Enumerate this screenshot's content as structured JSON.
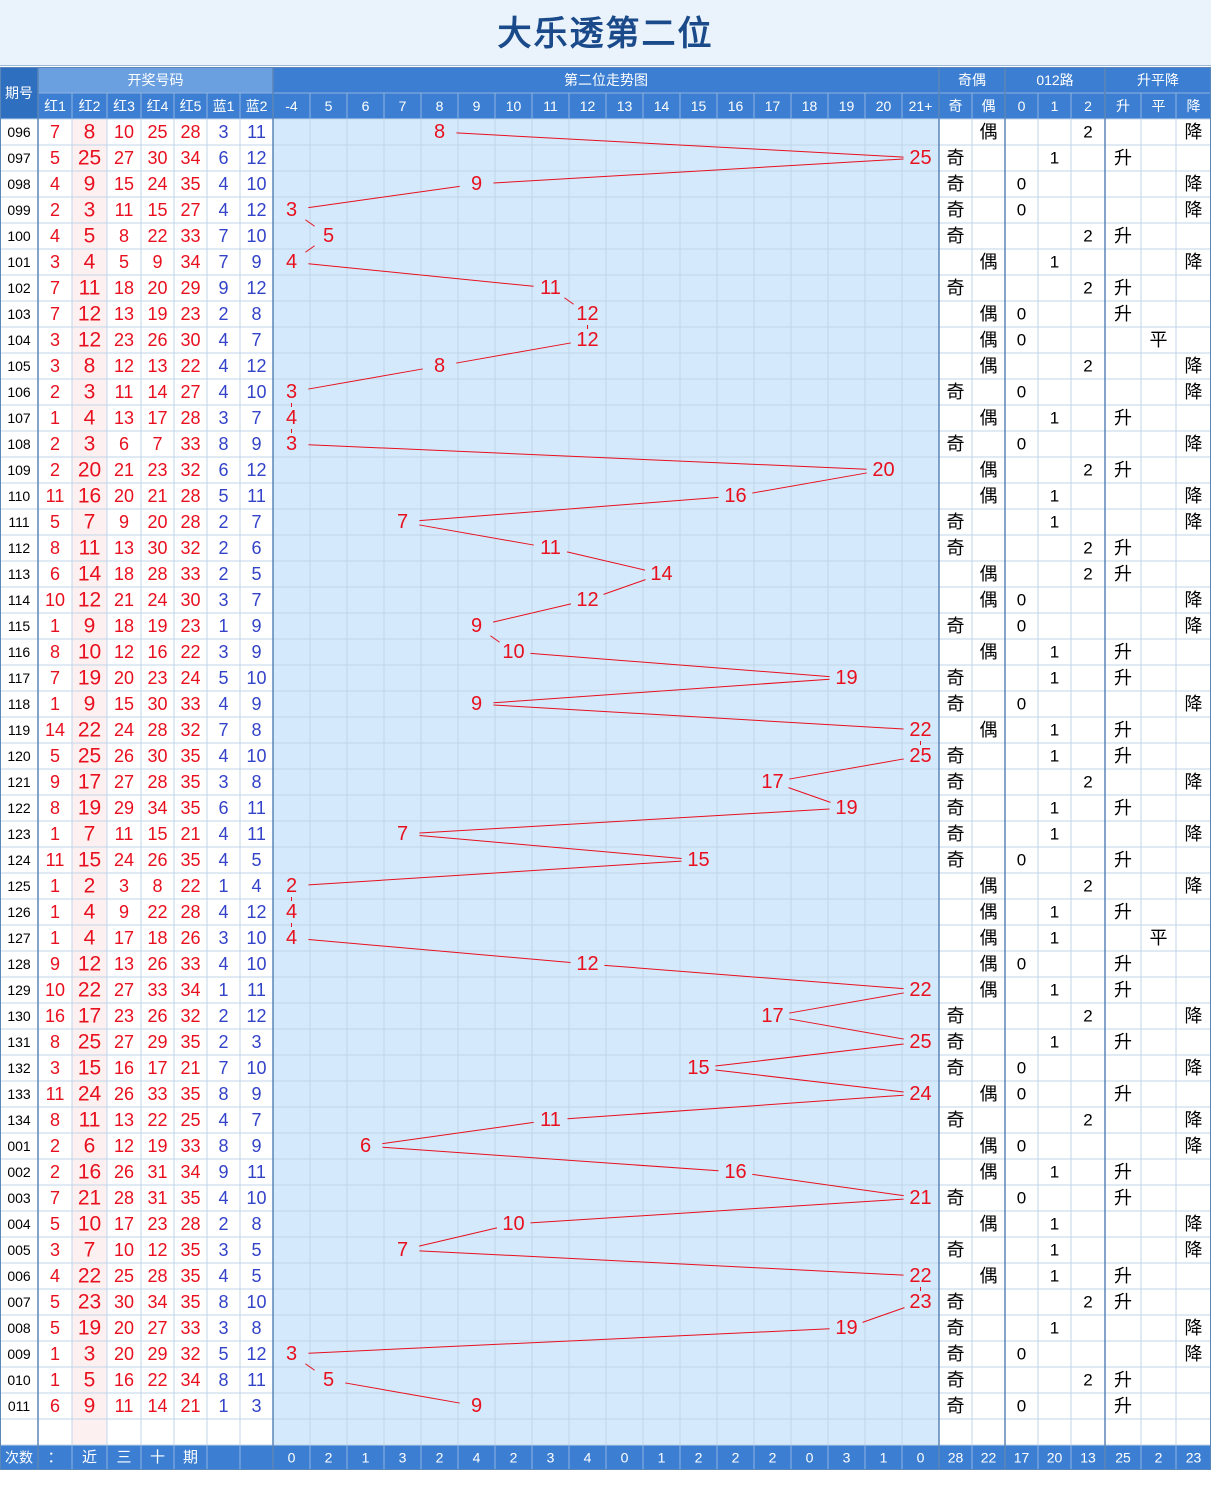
{
  "title": "大乐透第二位",
  "header": {
    "period": "期号",
    "group_numbers": "开奖号码",
    "group_trend": "第二位走势图",
    "group_odd_even": "奇偶",
    "group_012": "012路",
    "group_rise": "升平降",
    "ball_cols": [
      "红1",
      "红2",
      "红3",
      "红4",
      "红5",
      "蓝1",
      "蓝2"
    ],
    "trend_cols": [
      "-4",
      "5",
      "6",
      "7",
      "8",
      "9",
      "10",
      "11",
      "12",
      "13",
      "14",
      "15",
      "16",
      "17",
      "18",
      "19",
      "20",
      "21+"
    ],
    "oe_cols": [
      "奇",
      "偶"
    ],
    "r012_cols": [
      "0",
      "1",
      "2"
    ],
    "rise_cols": [
      "升",
      "平",
      "降"
    ]
  },
  "marks": {
    "odd": "奇",
    "even": "偶",
    "rise": "升",
    "flat": "平",
    "fall": "降"
  },
  "footer": {
    "label": "次数",
    "note_chars": [
      "：",
      "近",
      "三",
      "十",
      "期"
    ],
    "counts": [
      "0",
      "2",
      "1",
      "3",
      "2",
      "4",
      "2",
      "3",
      "4",
      "0",
      "1",
      "2",
      "2",
      "2",
      "0",
      "3",
      "1",
      "0",
      "28",
      "22",
      "17",
      "20",
      "13",
      "25",
      "2",
      "23"
    ]
  },
  "colors": {
    "red": "#e8101e",
    "blue": "#3343c8",
    "header_blue": "#3c7fd2",
    "trend_bg": "#d4e9fb",
    "grid": "#bfd6ea"
  },
  "chart_data": {
    "type": "line",
    "title": "大乐透第二位",
    "series_note": "第二位 value per draw, plotted on trend columns -4 … 21+",
    "rows": [
      {
        "p": "096",
        "r": [
          7,
          8,
          10,
          25,
          28
        ],
        "b": [
          3,
          11
        ],
        "oe": "偶",
        "m": 2,
        "t": "降"
      },
      {
        "p": "097",
        "r": [
          5,
          25,
          27,
          30,
          34
        ],
        "b": [
          6,
          12
        ],
        "oe": "奇",
        "m": 1,
        "t": "升"
      },
      {
        "p": "098",
        "r": [
          4,
          9,
          15,
          24,
          35
        ],
        "b": [
          4,
          10
        ],
        "oe": "奇",
        "m": 0,
        "t": "降"
      },
      {
        "p": "099",
        "r": [
          2,
          3,
          11,
          15,
          27
        ],
        "b": [
          4,
          12
        ],
        "oe": "奇",
        "m": 0,
        "t": "降"
      },
      {
        "p": "100",
        "r": [
          4,
          5,
          8,
          22,
          33
        ],
        "b": [
          7,
          10
        ],
        "oe": "奇",
        "m": 2,
        "t": "升"
      },
      {
        "p": "101",
        "r": [
          3,
          4,
          5,
          9,
          34
        ],
        "b": [
          7,
          9
        ],
        "oe": "偶",
        "m": 1,
        "t": "降"
      },
      {
        "p": "102",
        "r": [
          7,
          11,
          18,
          20,
          29
        ],
        "b": [
          9,
          12
        ],
        "oe": "奇",
        "m": 2,
        "t": "升"
      },
      {
        "p": "103",
        "r": [
          7,
          12,
          13,
          19,
          23
        ],
        "b": [
          2,
          8
        ],
        "oe": "偶",
        "m": 0,
        "t": "升"
      },
      {
        "p": "104",
        "r": [
          3,
          12,
          23,
          26,
          30
        ],
        "b": [
          4,
          7
        ],
        "oe": "偶",
        "m": 0,
        "t": "平"
      },
      {
        "p": "105",
        "r": [
          3,
          8,
          12,
          13,
          22
        ],
        "b": [
          4,
          12
        ],
        "oe": "偶",
        "m": 2,
        "t": "降"
      },
      {
        "p": "106",
        "r": [
          2,
          3,
          11,
          14,
          27
        ],
        "b": [
          4,
          10
        ],
        "oe": "奇",
        "m": 0,
        "t": "降"
      },
      {
        "p": "107",
        "r": [
          1,
          4,
          13,
          17,
          28
        ],
        "b": [
          3,
          7
        ],
        "oe": "偶",
        "m": 1,
        "t": "升"
      },
      {
        "p": "108",
        "r": [
          2,
          3,
          6,
          7,
          33
        ],
        "b": [
          8,
          9
        ],
        "oe": "奇",
        "m": 0,
        "t": "降"
      },
      {
        "p": "109",
        "r": [
          2,
          20,
          21,
          23,
          32
        ],
        "b": [
          6,
          12
        ],
        "oe": "偶",
        "m": 2,
        "t": "升"
      },
      {
        "p": "110",
        "r": [
          11,
          16,
          20,
          21,
          28
        ],
        "b": [
          5,
          11
        ],
        "oe": "偶",
        "m": 1,
        "t": "降"
      },
      {
        "p": "111",
        "r": [
          5,
          7,
          9,
          20,
          28
        ],
        "b": [
          2,
          7
        ],
        "oe": "奇",
        "m": 1,
        "t": "降"
      },
      {
        "p": "112",
        "r": [
          8,
          11,
          13,
          30,
          32
        ],
        "b": [
          2,
          6
        ],
        "oe": "奇",
        "m": 2,
        "t": "升"
      },
      {
        "p": "113",
        "r": [
          6,
          14,
          18,
          28,
          33
        ],
        "b": [
          2,
          5
        ],
        "oe": "偶",
        "m": 2,
        "t": "升"
      },
      {
        "p": "114",
        "r": [
          10,
          12,
          21,
          24,
          30
        ],
        "b": [
          3,
          7
        ],
        "oe": "偶",
        "m": 0,
        "t": "降"
      },
      {
        "p": "115",
        "r": [
          1,
          9,
          18,
          19,
          23
        ],
        "b": [
          1,
          9
        ],
        "oe": "奇",
        "m": 0,
        "t": "降"
      },
      {
        "p": "116",
        "r": [
          8,
          10,
          12,
          16,
          22
        ],
        "b": [
          3,
          9
        ],
        "oe": "偶",
        "m": 1,
        "t": "升"
      },
      {
        "p": "117",
        "r": [
          7,
          19,
          20,
          23,
          24
        ],
        "b": [
          5,
          10
        ],
        "oe": "奇",
        "m": 1,
        "t": "升"
      },
      {
        "p": "118",
        "r": [
          1,
          9,
          15,
          30,
          33
        ],
        "b": [
          4,
          9
        ],
        "oe": "奇",
        "m": 0,
        "t": "降"
      },
      {
        "p": "119",
        "r": [
          14,
          22,
          24,
          28,
          32
        ],
        "b": [
          7,
          8
        ],
        "oe": "偶",
        "m": 1,
        "t": "升"
      },
      {
        "p": "120",
        "r": [
          5,
          25,
          26,
          30,
          35
        ],
        "b": [
          4,
          10
        ],
        "oe": "奇",
        "m": 1,
        "t": "升"
      },
      {
        "p": "121",
        "r": [
          9,
          17,
          27,
          28,
          35
        ],
        "b": [
          3,
          8
        ],
        "oe": "奇",
        "m": 2,
        "t": "降"
      },
      {
        "p": "122",
        "r": [
          8,
          19,
          29,
          34,
          35
        ],
        "b": [
          6,
          11
        ],
        "oe": "奇",
        "m": 1,
        "t": "升"
      },
      {
        "p": "123",
        "r": [
          1,
          7,
          11,
          15,
          21
        ],
        "b": [
          4,
          11
        ],
        "oe": "奇",
        "m": 1,
        "t": "降"
      },
      {
        "p": "124",
        "r": [
          11,
          15,
          24,
          26,
          35
        ],
        "b": [
          4,
          5
        ],
        "oe": "奇",
        "m": 0,
        "t": "升"
      },
      {
        "p": "125",
        "r": [
          1,
          2,
          3,
          8,
          22
        ],
        "b": [
          1,
          4
        ],
        "oe": "偶",
        "m": 2,
        "t": "降"
      },
      {
        "p": "126",
        "r": [
          1,
          4,
          9,
          22,
          28
        ],
        "b": [
          4,
          12
        ],
        "oe": "偶",
        "m": 1,
        "t": "升"
      },
      {
        "p": "127",
        "r": [
          1,
          4,
          17,
          18,
          26
        ],
        "b": [
          3,
          10
        ],
        "oe": "偶",
        "m": 1,
        "t": "平"
      },
      {
        "p": "128",
        "r": [
          9,
          12,
          13,
          26,
          33
        ],
        "b": [
          4,
          10
        ],
        "oe": "偶",
        "m": 0,
        "t": "升"
      },
      {
        "p": "129",
        "r": [
          10,
          22,
          27,
          33,
          34
        ],
        "b": [
          1,
          11
        ],
        "oe": "偶",
        "m": 1,
        "t": "升"
      },
      {
        "p": "130",
        "r": [
          16,
          17,
          23,
          26,
          32
        ],
        "b": [
          2,
          12
        ],
        "oe": "奇",
        "m": 2,
        "t": "降"
      },
      {
        "p": "131",
        "r": [
          8,
          25,
          27,
          29,
          35
        ],
        "b": [
          2,
          3
        ],
        "oe": "奇",
        "m": 1,
        "t": "升"
      },
      {
        "p": "132",
        "r": [
          3,
          15,
          16,
          17,
          21
        ],
        "b": [
          7,
          10
        ],
        "oe": "奇",
        "m": 0,
        "t": "降"
      },
      {
        "p": "133",
        "r": [
          11,
          24,
          26,
          33,
          35
        ],
        "b": [
          8,
          9
        ],
        "oe": "偶",
        "m": 0,
        "t": "升"
      },
      {
        "p": "134",
        "r": [
          8,
          11,
          13,
          22,
          25
        ],
        "b": [
          4,
          7
        ],
        "oe": "奇",
        "m": 2,
        "t": "降"
      },
      {
        "p": "001",
        "r": [
          2,
          6,
          12,
          19,
          33
        ],
        "b": [
          8,
          9
        ],
        "oe": "偶",
        "m": 0,
        "t": "降"
      },
      {
        "p": "002",
        "r": [
          2,
          16,
          26,
          31,
          34
        ],
        "b": [
          9,
          11
        ],
        "oe": "偶",
        "m": 1,
        "t": "升"
      },
      {
        "p": "003",
        "r": [
          7,
          21,
          28,
          31,
          35
        ],
        "b": [
          4,
          10
        ],
        "oe": "奇",
        "m": 0,
        "t": "升"
      },
      {
        "p": "004",
        "r": [
          5,
          10,
          17,
          23,
          28
        ],
        "b": [
          2,
          8
        ],
        "oe": "偶",
        "m": 1,
        "t": "降"
      },
      {
        "p": "005",
        "r": [
          3,
          7,
          10,
          12,
          35
        ],
        "b": [
          3,
          5
        ],
        "oe": "奇",
        "m": 1,
        "t": "降"
      },
      {
        "p": "006",
        "r": [
          4,
          22,
          25,
          28,
          35
        ],
        "b": [
          4,
          5
        ],
        "oe": "偶",
        "m": 1,
        "t": "升"
      },
      {
        "p": "007",
        "r": [
          5,
          23,
          30,
          34,
          35
        ],
        "b": [
          8,
          10
        ],
        "oe": "奇",
        "m": 2,
        "t": "升"
      },
      {
        "p": "008",
        "r": [
          5,
          19,
          20,
          27,
          33
        ],
        "b": [
          3,
          8
        ],
        "oe": "奇",
        "m": 1,
        "t": "降"
      },
      {
        "p": "009",
        "r": [
          1,
          3,
          20,
          29,
          32
        ],
        "b": [
          5,
          12
        ],
        "oe": "奇",
        "m": 0,
        "t": "降"
      },
      {
        "p": "010",
        "r": [
          1,
          5,
          16,
          22,
          34
        ],
        "b": [
          8,
          11
        ],
        "oe": "奇",
        "m": 2,
        "t": "升"
      },
      {
        "p": "011",
        "r": [
          6,
          9,
          11,
          14,
          21
        ],
        "b": [
          1,
          3
        ],
        "oe": "奇",
        "m": 0,
        "t": "升"
      }
    ]
  }
}
